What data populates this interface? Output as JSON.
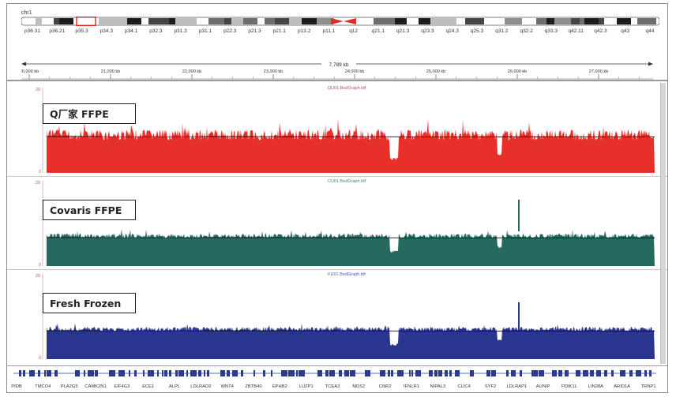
{
  "chromosome": {
    "name": "chr1",
    "bands": [
      "p36.31",
      "p36.21",
      "p35.3",
      "p34.3",
      "p34.1",
      "p32.3",
      "p31.3",
      "p31.1",
      "p22.3",
      "p21.3",
      "p21.1",
      "p13.2",
      "p11.1",
      "q12",
      "q21.1",
      "q21.3",
      "q23.3",
      "q24.3",
      "q25.3",
      "q31.2",
      "q32.2",
      "q33.3",
      "q42.11",
      "q42.3",
      "q43",
      "q44"
    ]
  },
  "ruler": {
    "span_label": "7,789 kb",
    "ticks": [
      "20,000 kb",
      "21,000 kb",
      "22,000 kb",
      "23,000 kb",
      "24,000 kb",
      "25,000 kb",
      "26,000 kb",
      "27,000 kb"
    ]
  },
  "tracks": [
    {
      "sample": "Q厂家 FFPE",
      "file": "QU01.BedGraph.tdf",
      "scale_max": "20",
      "scale_min": "0",
      "color": "#e8302b",
      "label_color": "#c84a4a",
      "amplitude": 1.0,
      "spike": 0
    },
    {
      "sample": "Covaris FFPE",
      "file": "CU01.BedGraph.tdf",
      "scale_max": "20",
      "scale_min": "0",
      "color": "#25695f",
      "label_color": "#3b8a7c",
      "amplitude": 0.45,
      "spike": 1
    },
    {
      "sample": "Fresh Frozen",
      "file": "FU01.BedGraph.tdf",
      "scale_max": "20",
      "scale_min": "0",
      "color": "#2a3590",
      "label_color": "#4a58b8",
      "amplitude": 0.4,
      "spike": 1
    }
  ],
  "genes": [
    "PIDB",
    "TMCO4",
    "PLA2G5",
    "CAMK2N1",
    "EIF4G3",
    "ECE1",
    "ALPL",
    "LDLRAD2",
    "WNT4",
    "ZBTB40",
    "EPHB2",
    "LUZP1",
    "TCEA3",
    "MDS2",
    "CNR2",
    "IFNLR1",
    "NIPAL3",
    "CLIC4",
    "SYF2",
    "LDLRAP1",
    "AUNIP",
    "PDIK1L",
    "LIN28A",
    "ARID1A",
    "TRNP1"
  ],
  "colors": {
    "frame": "#8a8a8a",
    "centromere": "#d9302a",
    "selection": "#e02020"
  }
}
